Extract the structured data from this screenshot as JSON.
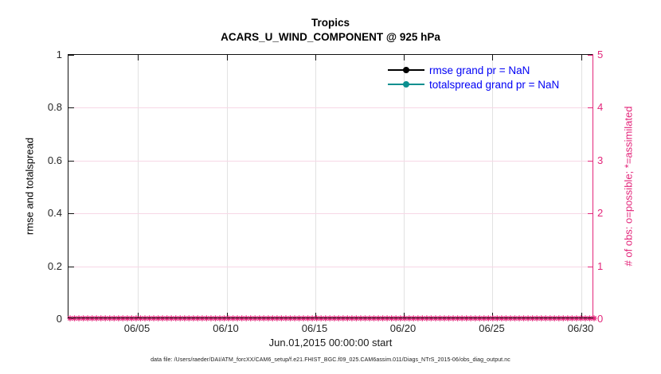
{
  "title": {
    "region": "Tropics",
    "variable": "ACARS_U_WIND_COMPONENT @ 925 hPa"
  },
  "axes": {
    "left": {
      "label": "rmse and totalspread",
      "ticks": [
        "0",
        "0.2",
        "0.4",
        "0.6",
        "0.8",
        "1"
      ],
      "range": [
        0,
        1
      ],
      "color": "#000000"
    },
    "right": {
      "label": "# of obs: o=possible; *=assimilated",
      "ticks": [
        "0",
        "1",
        "2",
        "3",
        "4",
        "5"
      ],
      "range": [
        0,
        5
      ],
      "color": "#e3257a"
    },
    "x": {
      "ticks": [
        "06/05",
        "06/10",
        "06/15",
        "06/20",
        "06/25",
        "06/30"
      ],
      "label": "Jun.01,2015 00:00:00 start"
    }
  },
  "legend": {
    "items": [
      {
        "label": "rmse grand pr = NaN",
        "color": "#000000",
        "marker": "filled-circle"
      },
      {
        "label": "totalspread grand pr = NaN",
        "color": "#0b8f8f",
        "marker": "filled-circle"
      }
    ],
    "text_color": "#0000f5"
  },
  "caption": "data file: /Users/raeder/DAI/ATM_forcXX/CAM6_setup/f.e21.FHIST_BGC.f09_025.CAM6assim.011/Diags_NTrS_2015-06/obs_diag_output.nc",
  "colors": {
    "obs_pink": "#e3257a",
    "grid_gray": "#e2e2e2",
    "grid_pink": "#f7d7e6",
    "legend_text_blue": "#0000f5"
  },
  "chart_data": {
    "type": "line",
    "title": "Tropics",
    "subtitle": "ACARS_U_WIND_COMPONENT @ 925 hPa",
    "xlabel": "Jun.01,2015 00:00:00 start",
    "ylabel_left": "rmse and totalspread",
    "ylabel_right": "# of obs: o=possible; *=assimilated",
    "x_tick_labels": [
      "06/05",
      "06/10",
      "06/15",
      "06/20",
      "06/25",
      "06/30"
    ],
    "ylim_left": [
      0,
      1
    ],
    "ylim_right": [
      0,
      5
    ],
    "grid": true,
    "legend_position": "upper right",
    "series": [
      {
        "name": "rmse grand pr = NaN",
        "color": "#000000",
        "marker": "filled-circle",
        "values": [],
        "note": "all values NaN, nothing plotted"
      },
      {
        "name": "totalspread grand pr = NaN",
        "color": "#0b8f8f",
        "marker": "filled-circle",
        "values": [],
        "note": "all values NaN, nothing plotted"
      }
    ],
    "obs_markers": {
      "name": "# of obs (possible/assimilated)",
      "marker": "*",
      "color": "#e3257a",
      "y_value": 0,
      "count": 120,
      "note": "dense asterisk markers at y=0 spanning Jun 01 through Jun 30, 6-hourly"
    }
  }
}
